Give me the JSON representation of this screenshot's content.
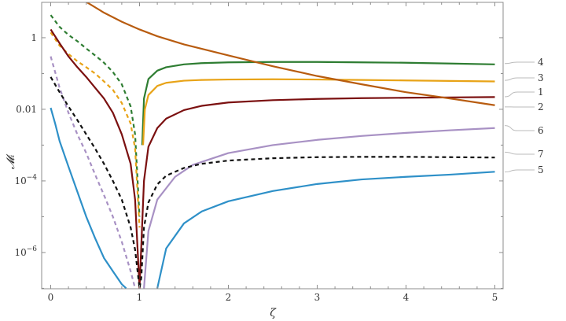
{
  "chart_data": {
    "type": "line",
    "title": "",
    "xlabel": "ζ",
    "ylabel": "𝓜ᵢ",
    "xlim": [
      0,
      5
    ],
    "ylim": [
      1e-07,
      10
    ],
    "y_scale": "log",
    "grid": false,
    "legend": "right, labels at line ends",
    "x_ticks": [
      {
        "value": 0,
        "label": "0"
      },
      {
        "value": 1,
        "label": "1"
      },
      {
        "value": 2,
        "label": "2"
      },
      {
        "value": 3,
        "label": "3"
      },
      {
        "value": 4,
        "label": "4"
      },
      {
        "value": 5,
        "label": "5"
      }
    ],
    "y_ticks": [
      {
        "value": 1,
        "base": "",
        "exp": "",
        "label": "1"
      },
      {
        "value": 0.01,
        "base": "",
        "exp": "",
        "label": "0.01"
      },
      {
        "value": 0.0001,
        "base": "10",
        "exp": "−4",
        "label": ""
      },
      {
        "value": 1e-06,
        "base": "10",
        "exp": "−6",
        "label": ""
      }
    ],
    "series": [
      {
        "label": "4",
        "color": "#2e7d32",
        "label_y": 0.19,
        "dashed": {
          "x": [
            0,
            0.1,
            0.2,
            0.3,
            0.4,
            0.5,
            0.6,
            0.7,
            0.8,
            0.9,
            0.95,
            1.0
          ],
          "y": [
            4.3,
            2.0,
            1.2,
            0.8,
            0.5,
            0.32,
            0.2,
            0.11,
            0.05,
            0.012,
            0.002,
            1e-05
          ]
        },
        "solid": {
          "x": [
            1.03,
            1.05,
            1.1,
            1.2,
            1.3,
            1.5,
            1.7,
            2,
            2.5,
            3,
            3.5,
            4,
            4.5,
            5
          ],
          "y": [
            0.001,
            0.02,
            0.07,
            0.12,
            0.15,
            0.18,
            0.195,
            0.205,
            0.21,
            0.21,
            0.205,
            0.2,
            0.19,
            0.18
          ]
        }
      },
      {
        "label": "3",
        "color": "#e8a317",
        "label_y": 0.0646,
        "dashed": {
          "x": [
            0,
            0.1,
            0.2,
            0.3,
            0.4,
            0.5,
            0.6,
            0.7,
            0.8,
            0.9,
            0.95,
            1.0
          ],
          "y": [
            1.4,
            0.6,
            0.35,
            0.22,
            0.15,
            0.1,
            0.06,
            0.035,
            0.015,
            0.004,
            0.0008,
            5e-06
          ]
        },
        "solid": {
          "x": [
            1.04,
            1.06,
            1.1,
            1.2,
            1.3,
            1.5,
            1.7,
            2,
            2.5,
            3,
            3.5,
            4,
            4.5,
            5
          ],
          "y": [
            0.001,
            0.01,
            0.025,
            0.045,
            0.055,
            0.063,
            0.066,
            0.068,
            0.069,
            0.068,
            0.066,
            0.064,
            0.062,
            0.06
          ]
        }
      },
      {
        "label": "1",
        "color": "#7b1010",
        "label_y": 0.0224,
        "solid": {
          "x": [
            0,
            0.1,
            0.2,
            0.3,
            0.4,
            0.5,
            0.6,
            0.7,
            0.8,
            0.9,
            0.95,
            1.0,
            1.05,
            1.1,
            1.2,
            1.3,
            1.5,
            1.7,
            2,
            2.5,
            3,
            3.5,
            4,
            4.5,
            5
          ],
          "y": [
            1.7,
            0.7,
            0.3,
            0.15,
            0.08,
            0.04,
            0.02,
            0.008,
            0.002,
            0.0003,
            3e-05,
            1e-07,
            0.0001,
            0.0009,
            0.003,
            0.0055,
            0.0095,
            0.0125,
            0.0155,
            0.018,
            0.0195,
            0.0205,
            0.021,
            0.0215,
            0.022
          ]
        }
      },
      {
        "label": "2",
        "color": "#b85c10",
        "label_y": 0.0117,
        "solid": {
          "x": [
            0.4,
            0.6,
            0.8,
            1.0,
            1.2,
            1.5,
            2,
            2.5,
            3,
            3.5,
            4,
            4.5,
            5
          ],
          "y": [
            10.0,
            5.0,
            2.8,
            1.7,
            1.1,
            0.65,
            0.32,
            0.16,
            0.085,
            0.05,
            0.03,
            0.02,
            0.013
          ]
        }
      },
      {
        "label": "6",
        "color": "#a891c4",
        "label_y": 0.0035,
        "dashed": {
          "x": [
            0,
            0.1,
            0.2,
            0.3,
            0.4,
            0.5,
            0.6,
            0.7,
            0.8,
            0.9,
            0.95
          ],
          "y": [
            0.3,
            0.04,
            0.008,
            0.002,
            0.0006,
            0.00015,
            4e-05,
            1e-05,
            2e-06,
            3e-07,
            1e-07
          ]
        },
        "solid": {
          "x": [
            1.05,
            1.1,
            1.2,
            1.4,
            1.6,
            2,
            2.5,
            3,
            3.5,
            4,
            4.5,
            5
          ],
          "y": [
            1e-07,
            4e-06,
            3e-05,
            0.00013,
            0.00028,
            0.0006,
            0.001,
            0.0014,
            0.0018,
            0.0022,
            0.0026,
            0.003
          ]
        }
      },
      {
        "label": "7",
        "color": "#111111",
        "label_y": 0.000635,
        "dashed": {
          "x": [
            0,
            0.1,
            0.2,
            0.3,
            0.4,
            0.5,
            0.6,
            0.7,
            0.8,
            0.9,
            0.95,
            1.0,
            1.02,
            1.05,
            1.1,
            1.2,
            1.3,
            1.5,
            1.7,
            2,
            2.5,
            3,
            3.5,
            4,
            4.5,
            5
          ],
          "y": [
            0.08,
            0.03,
            0.012,
            0.005,
            0.002,
            0.0008,
            0.0003,
            0.0001,
            3e-05,
            5e-06,
            1.2e-06,
            1e-07,
            2e-07,
            5e-06,
            2.5e-05,
            8e-05,
            0.00014,
            0.00023,
            0.0003,
            0.00037,
            0.00043,
            0.00046,
            0.00047,
            0.00047,
            0.00046,
            0.00045
          ]
        }
      },
      {
        "label": "5",
        "color": "#2e90c8",
        "label_y": 0.000177,
        "solid": {
          "x": [
            0,
            0.05,
            0.1,
            0.2,
            0.3,
            0.4,
            0.5,
            0.6,
            0.7,
            0.8,
            0.85
          ],
          "y": [
            0.011,
            0.004,
            0.0013,
            0.00025,
            5e-05,
            1e-05,
            2.5e-06,
            7e-07,
            3e-07,
            1.3e-07,
            1e-07
          ]
        },
        "solid2": {
          "x": [
            1.2,
            1.3,
            1.5,
            1.7,
            2,
            2.5,
            3,
            3.5,
            4,
            4.5,
            5
          ],
          "y": [
            1e-07,
            1.3e-06,
            6.5e-06,
            1.4e-05,
            2.7e-05,
            5.2e-05,
            8.2e-05,
            0.00011,
            0.00013,
            0.00015,
            0.00018
          ]
        }
      }
    ]
  }
}
